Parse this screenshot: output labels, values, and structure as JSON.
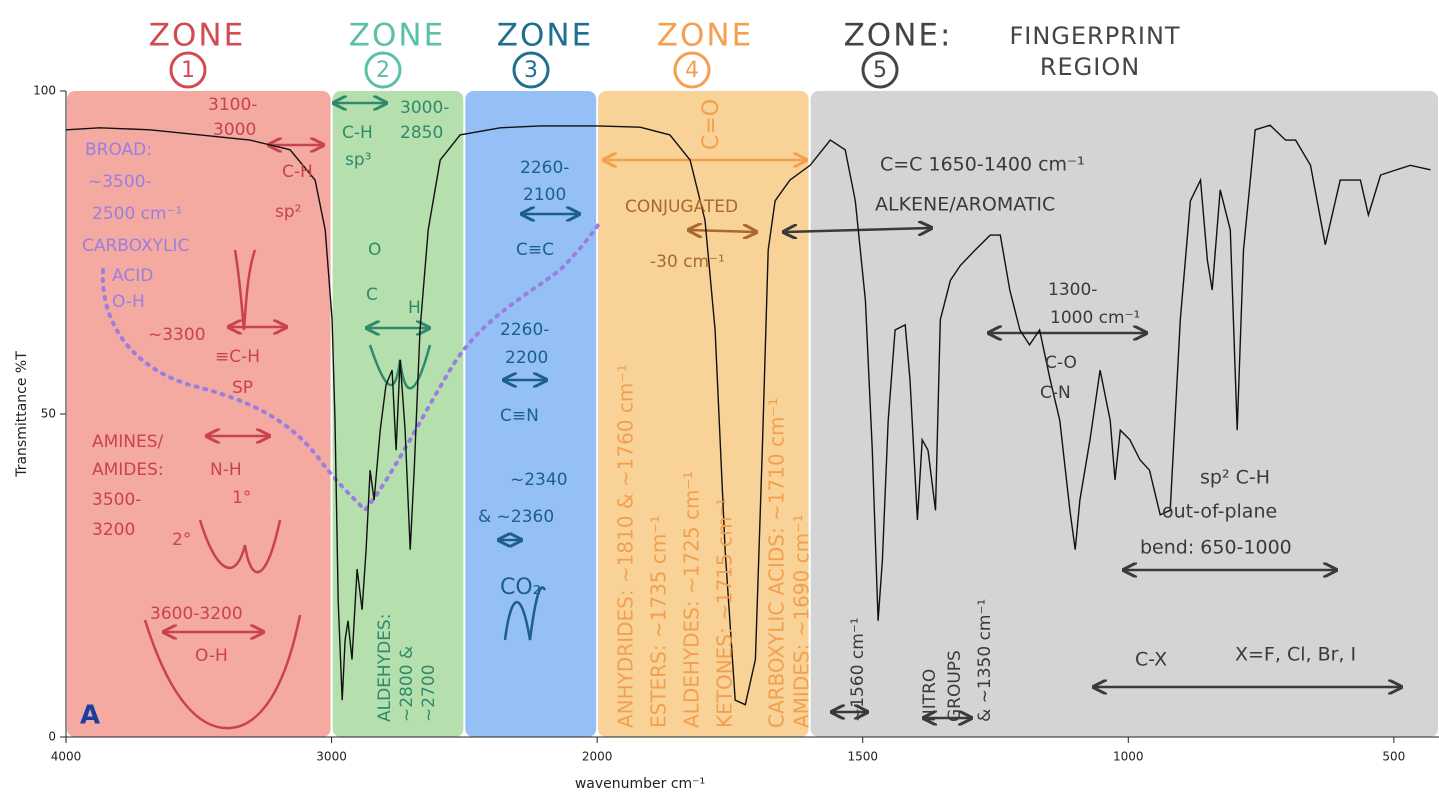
{
  "chart_data": {
    "type": "line",
    "x_label": "wavenumber cm⁻¹",
    "y_label": "Transmittance %T",
    "xlim": [
      4000,
      415
    ],
    "x_break": 2000,
    "xticks": [
      4000,
      3000,
      2000,
      1500,
      1000,
      500
    ],
    "ylim": [
      0,
      100
    ],
    "yticks": [
      0,
      50,
      100
    ],
    "color": "#111111",
    "x": [
      4000,
      3872,
      3684,
      3495,
      3307,
      3156,
      3062,
      3024,
      2998,
      2987,
      2975,
      2960,
      2949,
      2938,
      2923,
      2904,
      2885,
      2870,
      2855,
      2840,
      2817,
      2795,
      2772,
      2757,
      2742,
      2723,
      2704,
      2689,
      2667,
      2636,
      2591,
      2516,
      2365,
      2215,
      2000,
      1919,
      1863,
      1825,
      1797,
      1778,
      1759,
      1740,
      1721,
      1702,
      1689,
      1678,
      1665,
      1637,
      1599,
      1561,
      1533,
      1514,
      1495,
      1482,
      1471,
      1463,
      1452,
      1439,
      1420,
      1411,
      1397,
      1388,
      1377,
      1363,
      1354,
      1335,
      1316,
      1288,
      1260,
      1241,
      1223,
      1204,
      1186,
      1167,
      1147,
      1129,
      1110,
      1100,
      1091,
      1072,
      1053,
      1034,
      1025,
      1015,
      997,
      978,
      960,
      940,
      921,
      902,
      883,
      864,
      851,
      842,
      827,
      808,
      795,
      783,
      761,
      733,
      704,
      685,
      657,
      629,
      601,
      563,
      548,
      525,
      469,
      431
    ],
    "values": [
      94,
      94.3,
      94,
      93.2,
      92.4,
      90.9,
      86.2,
      78.5,
      64.6,
      49,
      21,
      5.7,
      15,
      18,
      12,
      26,
      19.7,
      29,
      41.3,
      36.7,
      47.5,
      54.5,
      56.8,
      44.4,
      58.4,
      47.5,
      29,
      41.3,
      63,
      78.5,
      89.3,
      93.2,
      94.3,
      94.6,
      94.6,
      94.4,
      93.2,
      89.3,
      80,
      63,
      29,
      5.7,
      5,
      12,
      44.4,
      75.4,
      83,
      86.2,
      88.5,
      92.4,
      90.9,
      83,
      67.6,
      44.4,
      18,
      27.4,
      49,
      63,
      63.8,
      55.3,
      33.6,
      46,
      44.4,
      35.1,
      64.6,
      70.7,
      73,
      75.4,
      77.7,
      77.7,
      69.2,
      63,
      60.7,
      63,
      55.3,
      49,
      35.1,
      29,
      36.7,
      46,
      56.8,
      49,
      39.8,
      47.5,
      46,
      42.9,
      41.3,
      34.4,
      35.1,
      64.6,
      83,
      86.2,
      73.8,
      69.2,
      84.7,
      78.5,
      47.5,
      75.4,
      94,
      94.7,
      92.4,
      92.4,
      88.5,
      76.2,
      86.2,
      86.2,
      80.8,
      87,
      88.5,
      87.8
    ],
    "zones": [
      {
        "name": "ZONE",
        "number": "1",
        "from": 4000,
        "to": 3000,
        "fill": "#f4aaa1",
        "text_color": "#d24b52"
      },
      {
        "name": "ZONE",
        "number": "2",
        "from": 3000,
        "to": 2500,
        "fill": "#b6dfae",
        "text_color": "#5cc0a8"
      },
      {
        "name": "ZONE",
        "number": "3",
        "from": 2500,
        "to": 2000,
        "fill": "#95c0f6",
        "text_color": "#1e6f90"
      },
      {
        "name": "ZONE",
        "number": "4",
        "from": 2000,
        "to": 1600,
        "fill": "#f9d298",
        "text_color": "#f4a050"
      },
      {
        "name": "ZONE:",
        "number": "5",
        "from": 1600,
        "to": 415,
        "fill": "#d4d4d4",
        "text_color": "#444444",
        "label": [
          "FINGERPRINT",
          "REGION"
        ]
      }
    ],
    "annotation_groups": [
      {
        "color": "#c8434b",
        "texts": [
          "3100-",
          "3000",
          "C-H",
          "sp²",
          "~3300",
          "≡C-H",
          "SP",
          "AMINES/",
          "AMIDES:",
          "N-H",
          "3500-",
          "3200",
          "2°",
          "1°",
          "3600-3200",
          "O-H"
        ]
      },
      {
        "color": "#9a7fe0",
        "texts": [
          "BROAD:",
          "~3500-",
          "2500 cm⁻¹",
          "CARBOXYLIC",
          "ACID",
          "O-H"
        ]
      },
      {
        "color": "#2f8a6c",
        "texts": [
          "3000-",
          "2850",
          "C-H",
          "sp³",
          "O",
          "C",
          "H",
          "ALDEHYDES:",
          "~2800 &",
          "~2700"
        ]
      },
      {
        "color": "#1b5f8c",
        "texts": [
          "2260-",
          "2100",
          "C≡C",
          "2260-",
          "2200",
          "C≡N",
          "~2340",
          "& ~2360",
          "CO₂"
        ]
      },
      {
        "color": "#f2a04e",
        "texts": [
          "C=O",
          "ANHYDRIDES: ~1810 & ~1760 cm⁻¹",
          "ESTERS: ~1735 cm⁻¹",
          "ALDEHYDES: ~1725 cm⁻¹",
          "KETONES: ~1715 cm⁻¹",
          "CARBOXYLIC ACIDS: ~1710 cm⁻¹",
          "AMIDES: ~1690 cm⁻¹"
        ]
      },
      {
        "color": "#a8692a",
        "texts": [
          "CONJUGATED",
          "-30 cm⁻¹"
        ]
      },
      {
        "color": "#3a3a3a",
        "texts": [
          "C=C 1650-1400 cm⁻¹",
          "ALKENE/AROMATIC",
          "1300-",
          "1000 cm⁻¹",
          "C-O",
          "C-N",
          "sp² C-H",
          "out-of-plane",
          "bend: 650-1000",
          "C-X",
          "X=F, Cl, Br, I",
          "~1560 cm⁻¹",
          "NITRO",
          "GROUPS",
          "& ~1350 cm⁻¹"
        ]
      },
      {
        "color": "#1a3fa0",
        "texts": [
          "A"
        ]
      }
    ]
  }
}
